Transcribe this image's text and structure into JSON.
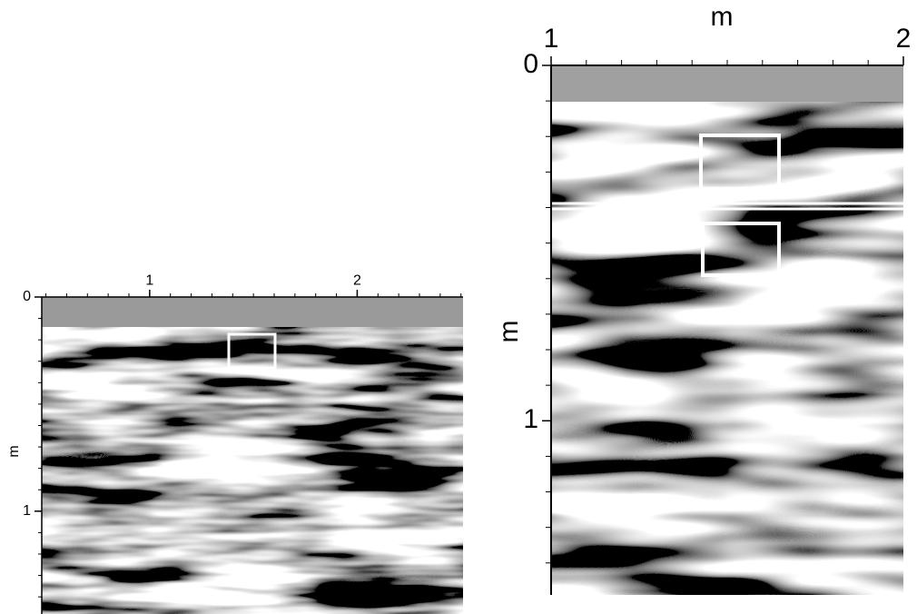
{
  "chart_data": [
    {
      "type": "radargram",
      "ylabel": "m",
      "xlim": [
        0.48,
        2.51
      ],
      "xticks": [
        1,
        2
      ],
      "ylim": [
        0,
        1.48
      ],
      "yticks": [
        0,
        1
      ],
      "minor_step": 0.1
    },
    {
      "type": "radargram",
      "xlabel": "m",
      "ylabel": "m",
      "xlim": [
        1,
        2
      ],
      "xticks": [
        1,
        2
      ],
      "ylim": [
        0,
        1.49
      ],
      "yticks": [
        0,
        1
      ],
      "minor_step": 0.1
    }
  ]
}
